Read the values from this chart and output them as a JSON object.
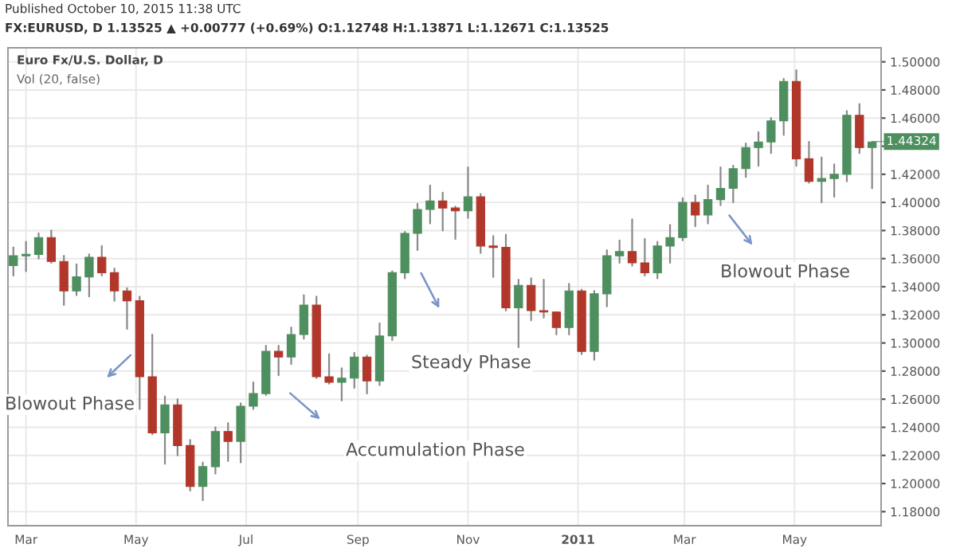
{
  "chart_data": {
    "type": "candlestick",
    "title": "Euro Fx/U.S. Dollar, D",
    "subtitle": "Vol (20, false)",
    "annotations": [
      "Published October 10, 2015 11:38 UTC",
      "FX:EURUSD, D 1.13525 ▲ +0.00777 (+0.69%) O:1.12748 H:1.13871 L:1.12671 C:1.13525",
      "Blowout Phase",
      "Accumulation Phase",
      "Steady Phase",
      "Blowout Phase",
      {
        "text": "1.44324",
        "x": "2011-06-13",
        "y": 1.44324
      }
    ],
    "x": [
      "2010-02-22",
      "2010-03-01",
      "2010-03-08",
      "2010-03-15",
      "2010-03-22",
      "2010-03-29",
      "2010-04-05",
      "2010-04-12",
      "2010-04-19",
      "2010-04-26",
      "2010-05-03",
      "2010-05-10",
      "2010-05-17",
      "2010-05-24",
      "2010-05-31",
      "2010-06-07",
      "2010-06-14",
      "2010-06-21",
      "2010-06-28",
      "2010-07-05",
      "2010-07-12",
      "2010-07-19",
      "2010-07-26",
      "2010-08-02",
      "2010-08-09",
      "2010-08-16",
      "2010-08-23",
      "2010-08-30",
      "2010-09-06",
      "2010-09-13",
      "2010-09-20",
      "2010-09-27",
      "2010-10-04",
      "2010-10-11",
      "2010-10-18",
      "2010-10-25",
      "2010-11-01",
      "2010-11-08",
      "2010-11-15",
      "2010-11-22",
      "2010-11-29",
      "2010-12-06",
      "2010-12-13",
      "2010-12-20",
      "2010-12-27",
      "2011-01-03",
      "2011-01-10",
      "2011-01-17",
      "2011-01-24",
      "2011-01-31",
      "2011-02-07",
      "2011-02-14",
      "2011-02-21",
      "2011-02-28",
      "2011-03-07",
      "2011-03-14",
      "2011-03-21",
      "2011-03-28",
      "2011-04-04",
      "2011-04-11",
      "2011-04-18",
      "2011-04-25",
      "2011-05-02",
      "2011-05-09",
      "2011-05-16",
      "2011-05-23",
      "2011-05-30",
      "2011-06-06",
      "2011-06-13"
    ],
    "ohlc": [
      [
        1.355,
        1.368,
        1.348,
        1.362
      ],
      [
        1.362,
        1.372,
        1.351,
        1.363
      ],
      [
        1.363,
        1.378,
        1.36,
        1.375
      ],
      [
        1.375,
        1.38,
        1.357,
        1.358
      ],
      [
        1.358,
        1.362,
        1.327,
        1.337
      ],
      [
        1.337,
        1.356,
        1.334,
        1.347
      ],
      [
        1.347,
        1.363,
        1.333,
        1.361
      ],
      [
        1.361,
        1.369,
        1.348,
        1.35
      ],
      [
        1.35,
        1.353,
        1.33,
        1.337
      ],
      [
        1.337,
        1.339,
        1.31,
        1.33
      ],
      [
        1.33,
        1.333,
        1.253,
        1.276
      ],
      [
        1.276,
        1.306,
        1.235,
        1.236
      ],
      [
        1.236,
        1.262,
        1.214,
        1.256
      ],
      [
        1.256,
        1.26,
        1.22,
        1.227
      ],
      [
        1.227,
        1.231,
        1.195,
        1.198
      ],
      [
        1.198,
        1.215,
        1.188,
        1.212
      ],
      [
        1.212,
        1.24,
        1.207,
        1.237
      ],
      [
        1.237,
        1.243,
        1.216,
        1.23
      ],
      [
        1.23,
        1.257,
        1.215,
        1.255
      ],
      [
        1.255,
        1.272,
        1.253,
        1.264
      ],
      [
        1.264,
        1.298,
        1.263,
        1.294
      ],
      [
        1.294,
        1.298,
        1.277,
        1.29
      ],
      [
        1.29,
        1.311,
        1.285,
        1.306
      ],
      [
        1.306,
        1.334,
        1.303,
        1.327
      ],
      [
        1.327,
        1.333,
        1.275,
        1.276
      ],
      [
        1.276,
        1.292,
        1.271,
        1.272
      ],
      [
        1.272,
        1.282,
        1.259,
        1.275
      ],
      [
        1.275,
        1.293,
        1.268,
        1.29
      ],
      [
        1.29,
        1.291,
        1.264,
        1.273
      ],
      [
        1.273,
        1.314,
        1.27,
        1.305
      ],
      [
        1.305,
        1.351,
        1.302,
        1.35
      ],
      [
        1.35,
        1.379,
        1.346,
        1.378
      ],
      [
        1.378,
        1.399,
        1.366,
        1.395
      ],
      [
        1.395,
        1.412,
        1.385,
        1.401
      ],
      [
        1.401,
        1.407,
        1.38,
        1.396
      ],
      [
        1.396,
        1.397,
        1.374,
        1.394
      ],
      [
        1.394,
        1.425,
        1.389,
        1.404
      ],
      [
        1.404,
        1.406,
        1.364,
        1.369
      ],
      [
        1.369,
        1.376,
        1.347,
        1.368
      ],
      [
        1.368,
        1.377,
        1.323,
        1.325
      ],
      [
        1.325,
        1.345,
        1.297,
        1.341
      ],
      [
        1.341,
        1.346,
        1.316,
        1.323
      ],
      [
        1.323,
        1.345,
        1.318,
        1.322
      ],
      [
        1.322,
        1.322,
        1.306,
        1.311
      ],
      [
        1.311,
        1.342,
        1.306,
        1.337
      ],
      [
        1.337,
        1.338,
        1.292,
        1.294
      ],
      [
        1.294,
        1.337,
        1.288,
        1.335
      ],
      [
        1.335,
        1.366,
        1.326,
        1.362
      ],
      [
        1.362,
        1.373,
        1.357,
        1.365
      ],
      [
        1.365,
        1.388,
        1.355,
        1.357
      ],
      [
        1.357,
        1.374,
        1.348,
        1.35
      ],
      [
        1.35,
        1.372,
        1.346,
        1.369
      ],
      [
        1.369,
        1.384,
        1.357,
        1.375
      ],
      [
        1.375,
        1.403,
        1.373,
        1.4
      ],
      [
        1.4,
        1.405,
        1.383,
        1.391
      ],
      [
        1.391,
        1.412,
        1.385,
        1.402
      ],
      [
        1.402,
        1.425,
        1.398,
        1.41
      ],
      [
        1.41,
        1.426,
        1.4,
        1.424
      ],
      [
        1.424,
        1.442,
        1.418,
        1.439
      ],
      [
        1.439,
        1.45,
        1.426,
        1.443
      ],
      [
        1.443,
        1.46,
        1.435,
        1.458
      ],
      [
        1.458,
        1.488,
        1.448,
        1.486
      ],
      [
        1.486,
        1.494,
        1.426,
        1.431
      ],
      [
        1.431,
        1.443,
        1.414,
        1.415
      ],
      [
        1.415,
        1.432,
        1.4,
        1.417
      ],
      [
        1.417,
        1.427,
        1.404,
        1.42
      ],
      [
        1.42,
        1.465,
        1.415,
        1.462
      ],
      [
        1.462,
        1.47,
        1.435,
        1.439
      ],
      [
        1.439,
        1.443,
        1.41,
        1.443
      ]
    ],
    "colors": [
      "#4d8f5e",
      "#4d8f5e",
      "#4d8f5e",
      "#b2372b",
      "#b2372b",
      "#4d8f5e",
      "#4d8f5e",
      "#b2372b",
      "#b2372b",
      "#b2372b",
      "#b2372b",
      "#b2372b",
      "#4d8f5e",
      "#b2372b",
      "#b2372b",
      "#4d8f5e",
      "#4d8f5e",
      "#b2372b",
      "#4d8f5e",
      "#4d8f5e",
      "#4d8f5e",
      "#b2372b",
      "#4d8f5e",
      "#4d8f5e",
      "#b2372b",
      "#b2372b",
      "#4d8f5e",
      "#4d8f5e",
      "#b2372b",
      "#4d8f5e",
      "#4d8f5e",
      "#4d8f5e",
      "#4d8f5e",
      "#4d8f5e",
      "#b2372b",
      "#b2372b",
      "#4d8f5e",
      "#b2372b",
      "#b2372b",
      "#b2372b",
      "#4d8f5e",
      "#b2372b",
      "#b2372b",
      "#b2372b",
      "#4d8f5e",
      "#b2372b",
      "#4d8f5e",
      "#4d8f5e",
      "#4d8f5e",
      "#b2372b",
      "#b2372b",
      "#4d8f5e",
      "#4d8f5e",
      "#4d8f5e",
      "#b2372b",
      "#4d8f5e",
      "#4d8f5e",
      "#4d8f5e",
      "#4d8f5e",
      "#4d8f5e",
      "#4d8f5e",
      "#4d8f5e",
      "#b2372b",
      "#b2372b",
      "#4d8f5e",
      "#4d8f5e",
      "#4d8f5e",
      "#b2372b",
      "#4d8f5e"
    ],
    "xlim": [
      "2010-02-19",
      "2011-06-18"
    ],
    "xticks": [
      {
        "value": "2010-03-01",
        "label": "Mar"
      },
      {
        "value": "2010-05-01",
        "label": "May"
      },
      {
        "value": "2010-07-01",
        "label": "Jul"
      },
      {
        "value": "2010-09-01",
        "label": "Sep"
      },
      {
        "value": "2010-11-01",
        "label": "Nov"
      },
      {
        "value": "2011-01-01",
        "label": "2011"
      },
      {
        "value": "2011-03-01",
        "label": "Mar"
      },
      {
        "value": "2011-05-01",
        "label": "May"
      }
    ],
    "ylim": [
      1.17,
      1.51
    ],
    "yticks": [
      {
        "value": 1.18,
        "label": "1.18000"
      },
      {
        "value": 1.2,
        "label": "1.20000"
      },
      {
        "value": 1.22,
        "label": "1.22000"
      },
      {
        "value": 1.24,
        "label": "1.24000"
      },
      {
        "value": 1.26,
        "label": "1.26000"
      },
      {
        "value": 1.28,
        "label": "1.28000"
      },
      {
        "value": 1.3,
        "label": "1.30000"
      },
      {
        "value": 1.32,
        "label": "1.32000"
      },
      {
        "value": 1.34,
        "label": "1.34000"
      },
      {
        "value": 1.36,
        "label": "1.36000"
      },
      {
        "value": 1.38,
        "label": "1.38000"
      },
      {
        "value": 1.4,
        "label": "1.40000"
      },
      {
        "value": 1.42,
        "label": "1.42000"
      },
      {
        "value": 1.44,
        "label": null
      },
      {
        "value": 1.46,
        "label": "1.46000"
      },
      {
        "value": 1.48,
        "label": "1.48000"
      },
      {
        "value": 1.5,
        "label": "1.50000"
      }
    ],
    "grid": true
  }
}
